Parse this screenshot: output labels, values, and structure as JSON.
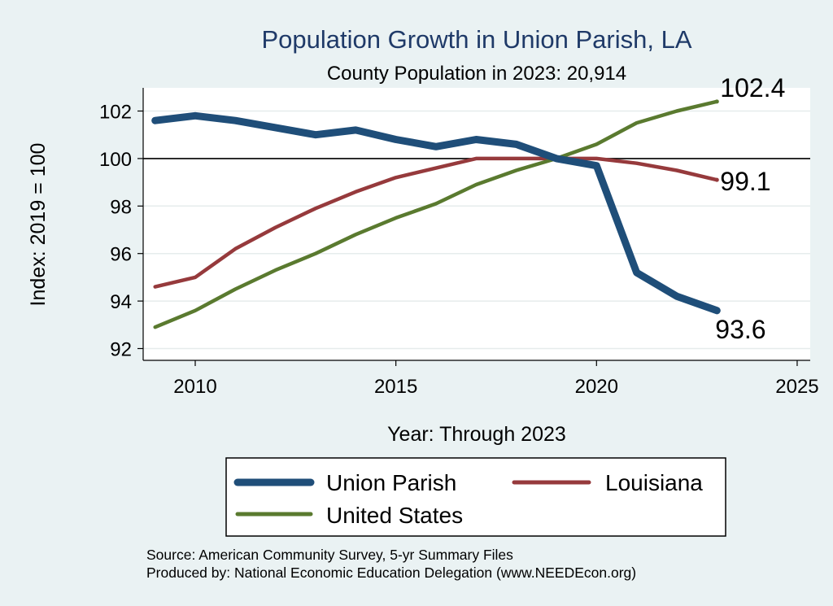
{
  "chart_data": {
    "type": "line",
    "title": "Population Growth in Union Parish, LA",
    "subtitle": "County Population in 2023: 20,914",
    "xlabel": "Year: Through 2023",
    "ylabel": "Index: 2019 = 100",
    "xlim": [
      2009,
      2025
    ],
    "ylim": [
      92,
      103
    ],
    "x_ticks": [
      2010,
      2015,
      2020,
      2025
    ],
    "y_ticks": [
      92,
      94,
      96,
      98,
      100,
      102
    ],
    "reference_line": 100,
    "grid": true,
    "legend": "bottom",
    "x": [
      2009,
      2010,
      2011,
      2012,
      2013,
      2014,
      2015,
      2016,
      2017,
      2018,
      2019,
      2020,
      2021,
      2022,
      2023
    ],
    "series": [
      {
        "name": "Union Parish",
        "color": "#1f4e79",
        "values": [
          101.6,
          101.8,
          101.6,
          101.3,
          101.0,
          101.2,
          100.8,
          100.5,
          100.8,
          100.6,
          100.0,
          99.7,
          95.2,
          94.2,
          93.6
        ],
        "end_label": "93.6"
      },
      {
        "name": "Louisiana",
        "color": "#963a3c",
        "values": [
          94.6,
          95.0,
          96.2,
          97.1,
          97.9,
          98.6,
          99.2,
          99.6,
          100.0,
          100.0,
          100.0,
          100.0,
          99.8,
          99.5,
          99.1
        ],
        "end_label": "99.1"
      },
      {
        "name": "United States",
        "color": "#5a7a2f",
        "values": [
          92.9,
          93.6,
          94.5,
          95.3,
          96.0,
          96.8,
          97.5,
          98.1,
          98.9,
          99.5,
          100.0,
          100.6,
          101.5,
          102.0,
          102.4
        ],
        "end_label": "102.4"
      }
    ]
  },
  "notes": {
    "source": "Source: American Community Survey, 5-yr Summary Files",
    "produced_by": "Produced by: National Economic Education Delegation (www.NEEDEcon.org)"
  }
}
